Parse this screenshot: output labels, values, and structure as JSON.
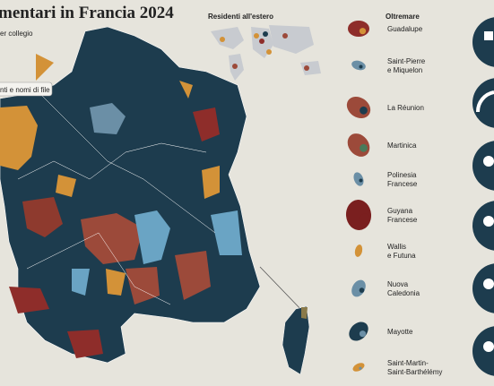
{
  "header": {
    "title": "mentari in Francia 2024",
    "subtitle": "er collegio",
    "search_placeholder": "nti e nomi di file"
  },
  "abroad": {
    "title": "Residenti all'estero"
  },
  "overseas": {
    "title": "Oltremare",
    "territories": [
      {
        "label": [
          "Guadalupe"
        ]
      },
      {
        "label": [
          "Saint-Pierre",
          "e Miquelon"
        ]
      },
      {
        "label": [
          "La Réunion"
        ]
      },
      {
        "label": [
          "Martinica"
        ]
      },
      {
        "label": [
          "Polinesia",
          "Francese"
        ]
      },
      {
        "label": [
          "Guyana",
          "Francese"
        ]
      },
      {
        "label": [
          "Wallis",
          "e Futuna"
        ]
      },
      {
        "label": [
          "Nuova",
          "Caledonia"
        ]
      },
      {
        "label": [
          "Mayotte"
        ]
      },
      {
        "label": [
          "Saint-Martin-",
          "Saint-Barthélémy"
        ]
      }
    ]
  }
}
